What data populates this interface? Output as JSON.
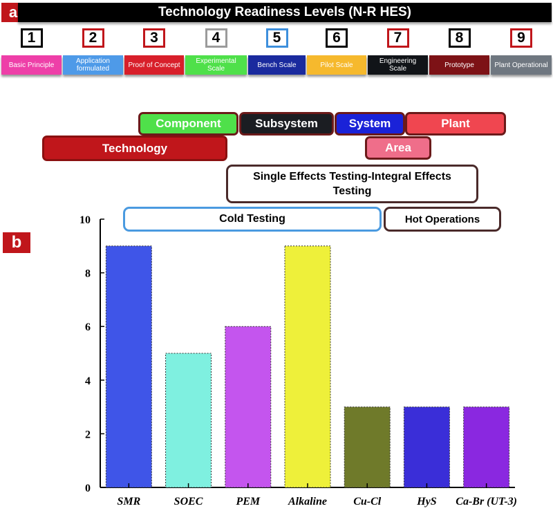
{
  "panel_a": {
    "label": "a",
    "title": "Technology Readiness Levels (N-R HES)",
    "levels": [
      {
        "num": "1",
        "name": "Basic Principle",
        "num_color": "#000000",
        "bg": "#ee3fa8"
      },
      {
        "num": "2",
        "name": "Application formulated",
        "num_color": "#c0161b",
        "bg": "#4e9ae8"
      },
      {
        "num": "3",
        "name": "Proof of Concept",
        "num_color": "#c0161b",
        "bg": "#d81f2a"
      },
      {
        "num": "4",
        "name": "Experimental Scale",
        "num_color": "#9b9b9b",
        "bg": "#4fe04a"
      },
      {
        "num": "5",
        "name": "Bench Scale",
        "num_color": "#3d8fdc",
        "bg": "#1a2a9e"
      },
      {
        "num": "6",
        "name": "Pilot Scale",
        "num_color": "#000000",
        "bg": "#f6b92d"
      },
      {
        "num": "7",
        "name": "Engineering Scale",
        "num_color": "#c0161b",
        "bg": "#111418"
      },
      {
        "num": "8",
        "name": "Prototype",
        "num_color": "#000000",
        "bg": "#7d1216"
      },
      {
        "num": "9",
        "name": "Plant Operational",
        "num_color": "#c0161b",
        "bg": "#6f7780"
      }
    ],
    "scope": {
      "component": "Component",
      "subsystem": "Subsystem",
      "system": "System",
      "plant": "Plant",
      "technology": "Technology",
      "area": "Area"
    },
    "testing": {
      "single_integral": "Single Effects Testing-Integral Effects Testing",
      "cold": "Cold Testing",
      "hot": "Hot Operations"
    }
  },
  "panel_b": {
    "label": "b"
  },
  "chart_data": {
    "type": "bar",
    "categories": [
      "SMR",
      "SOEC",
      "PEM",
      "Alkaline",
      "Cu-Cl",
      "HyS",
      "Ca-Br (UT-3)"
    ],
    "values": [
      9,
      5,
      6,
      9,
      3,
      3,
      3
    ],
    "colors": [
      "#3f55e8",
      "#7ff0e0",
      "#c455ee",
      "#eef03a",
      "#6f7a2a",
      "#3a2ed8",
      "#8a28e0"
    ],
    "title": "",
    "xlabel": "",
    "ylabel": "",
    "ylim": [
      0,
      10
    ],
    "yticks": [
      0,
      2,
      4,
      6,
      8,
      10
    ],
    "grid": false
  }
}
